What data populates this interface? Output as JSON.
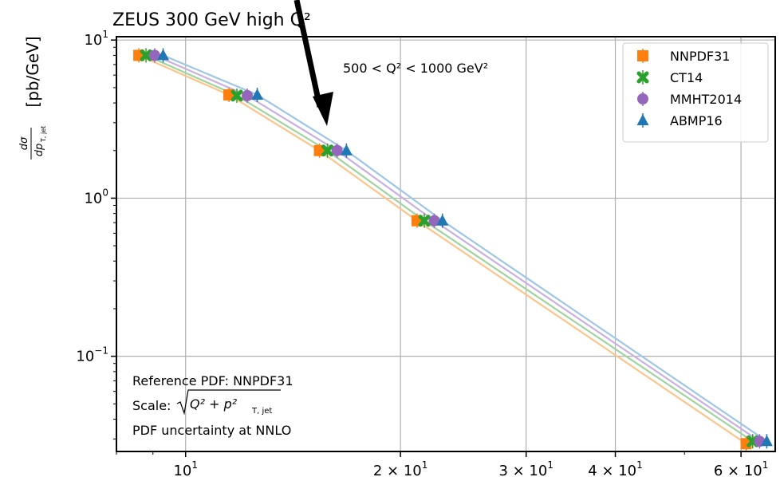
{
  "chart_data": {
    "type": "line",
    "title": "ZEUS 300 GeV high Q²",
    "xlabel": "",
    "ylabel": {
      "fraction_num": "dσ",
      "fraction_den": "dp",
      "fraction_den_sub": "T, jet",
      "unit": "[pb/GeV]"
    },
    "x_scale": "log",
    "y_scale": "log",
    "xlim": [
      8.0,
      67.0
    ],
    "ylim": [
      0.025,
      10.5
    ],
    "grid": true,
    "x_ticks": [
      {
        "value": 10,
        "base": "10",
        "exp": "1"
      },
      {
        "value": 20,
        "base": "2 × 10",
        "exp": "1"
      },
      {
        "value": 30,
        "base": "3 × 10",
        "exp": "1"
      },
      {
        "value": 40,
        "base": "4 × 10",
        "exp": "1"
      },
      {
        "value": 60,
        "base": "6 × 10",
        "exp": "1"
      }
    ],
    "y_ticks": [
      {
        "value": 10,
        "base": "10",
        "exp": "1"
      },
      {
        "value": 1,
        "base": "10",
        "exp": "0"
      },
      {
        "value": 0.1,
        "base": "10",
        "exp": "−1"
      }
    ],
    "x": [
      8.6,
      11.5,
      15.4,
      21.1,
      61.0
    ],
    "series": [
      {
        "name": "NNPDF31",
        "color": "#ff7f0e",
        "line_color": "#fdc48b",
        "marker": "square",
        "x": [
          8.6,
          11.5,
          15.4,
          21.1,
          61.0
        ],
        "values": [
          8.0,
          4.5,
          2.0,
          0.72,
          0.028
        ]
      },
      {
        "name": "CT14",
        "color": "#2ca02c",
        "line_color": "#9fd49f",
        "marker": "cross",
        "x": [
          8.8,
          11.8,
          15.8,
          21.6,
          62.3
        ],
        "values": [
          8.0,
          4.45,
          2.0,
          0.72,
          0.029
        ]
      },
      {
        "name": "MMHT2014",
        "color": "#9467bd",
        "line_color": "#c8b1e1",
        "marker": "circle",
        "x": [
          9.05,
          12.2,
          16.3,
          22.3,
          63.7
        ],
        "values": [
          8.0,
          4.45,
          2.0,
          0.72,
          0.029
        ]
      },
      {
        "name": "ABMP16",
        "color": "#1f77b4",
        "line_color": "#9ec6e6",
        "marker": "triangle",
        "x": [
          9.3,
          12.6,
          16.8,
          22.9,
          65.2
        ],
        "values": [
          8.0,
          4.5,
          2.0,
          0.72,
          0.029
        ]
      }
    ],
    "legend_position": "top-right",
    "annotations": {
      "q2_range": "500 < Q² < 1000 GeV²",
      "reference": "Reference PDF: NNPDF31",
      "scale_label": "Scale:",
      "scale_formula": "Q² + p²",
      "scale_formula_sub": "T, jet",
      "uncertainty": "PDF uncertainty at NNLO"
    },
    "arrow_color": "#000000"
  }
}
